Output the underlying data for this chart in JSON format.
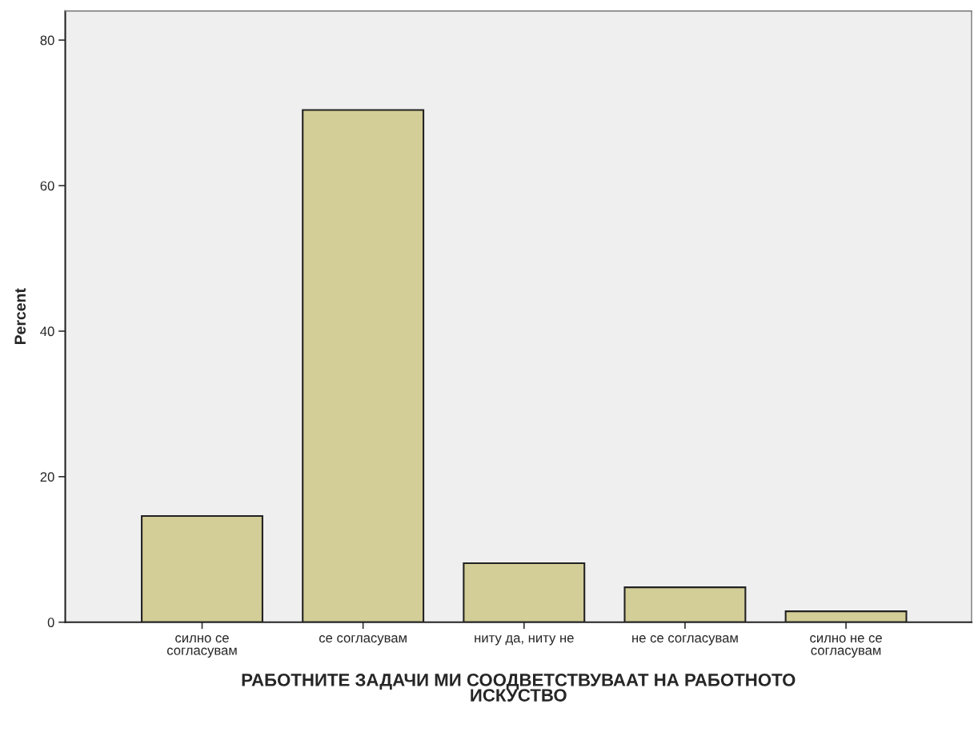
{
  "chart_data": {
    "type": "bar",
    "xlabel": "РАБОТНИТЕ ЗАДАЧИ МИ СООДВЕТСТВУВААТ НА РАБОТНОТО\nИСКУСТВО",
    "ylabel": "Percent",
    "categories": [
      "силно се\nсогласувам",
      "се согласувам",
      "ниту да, ниту не",
      "не се согласувам",
      "силно не се\nсогласувам"
    ],
    "values": [
      14.6,
      70.4,
      8.1,
      4.8,
      1.5
    ],
    "color": "#d3cd97",
    "ylim": [
      0,
      84
    ],
    "yticks": [
      0,
      20,
      40,
      60,
      80
    ],
    "grid": false
  }
}
